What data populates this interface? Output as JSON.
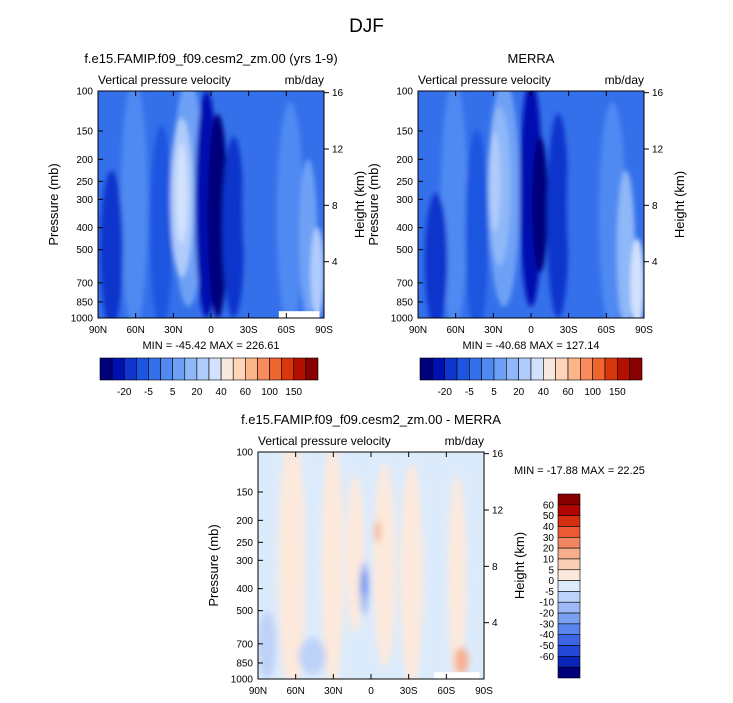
{
  "page": {
    "title": "DJF"
  },
  "colors": {
    "full_scale": [
      "#00007a",
      "#0010b0",
      "#1035cc",
      "#1e55e0",
      "#3470ea",
      "#5089f2",
      "#6ea1f6",
      "#8fb8f8",
      "#b0ccfa",
      "#d2e2fc",
      "#f6e8dc",
      "#ffd4b8",
      "#fcb48a",
      "#f88c5c",
      "#f06430",
      "#d8360c",
      "#b41000",
      "#880000"
    ],
    "diff_scale": [
      "#00007a",
      "#0b24b8",
      "#2448d8",
      "#3c65e6",
      "#5a84ee",
      "#7ba0f2",
      "#9dbaf6",
      "#bdd2f8",
      "#dcebfc",
      "#fde9dc",
      "#fbcfb6",
      "#f8ad8c",
      "#f28660",
      "#ea5a34",
      "#d42d10",
      "#b00600",
      "#860000"
    ]
  },
  "chart_data": [
    {
      "type": "heatmap",
      "title": "f.e15.FAMIP.f09_f09.cesm2_zm.00 (yrs 1-9)",
      "left_label": "Vertical pressure velocity",
      "right_label": "mb/day",
      "ylabel": "Pressure (mb)",
      "y2label": "Height (km)",
      "xticks": [
        "90N",
        "60N",
        "30N",
        "0",
        "30S",
        "60S",
        "90S"
      ],
      "yticks": [
        "100",
        "150",
        "200",
        "250",
        "300",
        "400",
        "500",
        "700",
        "850",
        "1000"
      ],
      "y2ticks": [
        "16",
        "12",
        "8",
        "4"
      ],
      "ylim": [
        1000,
        100
      ],
      "y_scale": "log",
      "stats": "MIN = -45.42  MAX = 226.61",
      "colorbar": {
        "orientation": "horizontal",
        "labels": [
          "-20",
          "-5",
          "5",
          "20",
          "40",
          "60",
          "100",
          "150"
        ],
        "n_colors": 18
      }
    },
    {
      "type": "heatmap",
      "title": "MERRA",
      "left_label": "Vertical pressure velocity",
      "right_label": "mb/day",
      "ylabel": "Pressure (mb)",
      "y2label": "Height (km)",
      "xticks": [
        "90N",
        "60N",
        "30N",
        "0",
        "30S",
        "60S",
        "90S"
      ],
      "yticks": [
        "100",
        "150",
        "200",
        "250",
        "300",
        "400",
        "500",
        "700",
        "850",
        "1000"
      ],
      "y2ticks": [
        "16",
        "12",
        "8",
        "4"
      ],
      "ylim": [
        1000,
        100
      ],
      "y_scale": "log",
      "stats": "MIN = -40.68  MAX = 127.14",
      "colorbar": {
        "orientation": "horizontal",
        "labels": [
          "-20",
          "-5",
          "5",
          "20",
          "40",
          "60",
          "100",
          "150"
        ],
        "n_colors": 18
      }
    },
    {
      "type": "heatmap",
      "title": "f.e15.FAMIP.f09_f09.cesm2_zm.00 - MERRA",
      "left_label": "Vertical pressure velocity",
      "right_label": "mb/day",
      "ylabel": "Pressure (mb)",
      "y2label": "Height (km)",
      "xticks": [
        "90N",
        "60N",
        "30N",
        "0",
        "30S",
        "60S",
        "90S"
      ],
      "yticks": [
        "100",
        "150",
        "200",
        "250",
        "300",
        "400",
        "500",
        "700",
        "850",
        "1000"
      ],
      "y2ticks": [
        "16",
        "12",
        "8",
        "4"
      ],
      "ylim": [
        1000,
        100
      ],
      "y_scale": "log",
      "stats": "MIN = -17.88  MAX =  22.25",
      "colorbar": {
        "orientation": "vertical",
        "labels": [
          "60",
          "50",
          "40",
          "30",
          "20",
          "10",
          "5",
          "0",
          "-5",
          "-10",
          "-20",
          "-30",
          "-40",
          "-50",
          "-60"
        ],
        "n_colors": 17
      }
    }
  ]
}
